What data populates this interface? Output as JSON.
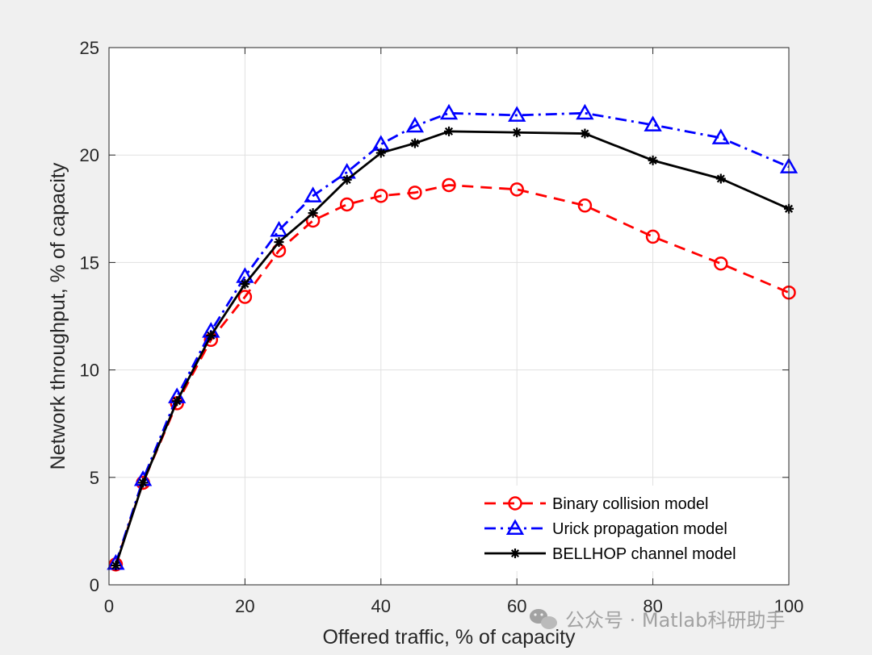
{
  "chart_data": {
    "type": "line",
    "title": "",
    "xlabel": "Offered traffic, % of capacity",
    "ylabel": "Network throughput, % of capacity",
    "xlim": [
      0,
      100
    ],
    "ylim": [
      0,
      25
    ],
    "xticks": [
      0,
      20,
      40,
      60,
      80,
      100
    ],
    "yticks": [
      0,
      5,
      10,
      15,
      20,
      25
    ],
    "grid": true,
    "legend_position": "bottom-right",
    "x": [
      1,
      5,
      10,
      15,
      20,
      25,
      30,
      35,
      40,
      45,
      50,
      60,
      70,
      80,
      90,
      100
    ],
    "series": [
      {
        "name": "Binary collision model",
        "color": "#ff0000",
        "line_style": "dashed",
        "marker": "circle",
        "values": [
          0.95,
          4.75,
          8.45,
          11.4,
          13.4,
          15.55,
          16.95,
          17.7,
          18.1,
          18.25,
          18.6,
          18.4,
          17.65,
          16.2,
          14.95,
          13.6
        ]
      },
      {
        "name": "Urick propagation model",
        "color": "#0000ff",
        "line_style": "dashdot",
        "marker": "triangle",
        "values": [
          1.0,
          4.9,
          8.75,
          11.8,
          14.35,
          16.5,
          18.1,
          19.2,
          20.5,
          21.35,
          21.95,
          21.85,
          21.95,
          21.4,
          20.8,
          19.45
        ]
      },
      {
        "name": "BELLHOP channel model",
        "color": "#000000",
        "line_style": "solid",
        "marker": "asterisk",
        "values": [
          0.9,
          4.75,
          8.55,
          11.6,
          14.0,
          15.95,
          17.3,
          18.85,
          20.1,
          20.55,
          21.1,
          21.05,
          21.0,
          19.75,
          18.9,
          17.5
        ]
      }
    ]
  },
  "watermark": {
    "icon": "wechat-icon",
    "text": "公众号 · Matlab科研助手"
  }
}
